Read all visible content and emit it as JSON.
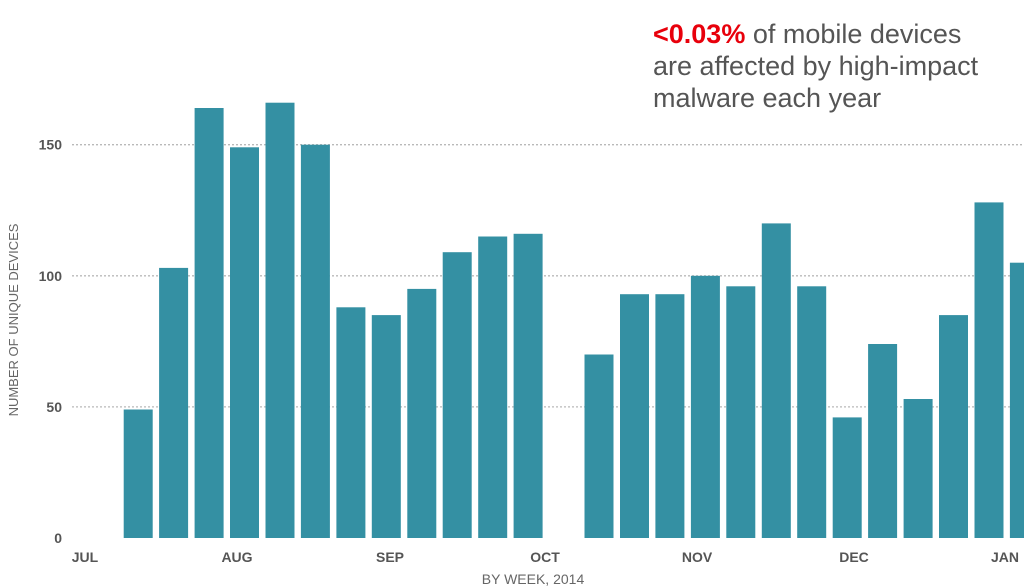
{
  "callout": {
    "highlight": "<0.03%",
    "line1_rest": " of mobile devices",
    "line2": "are affected by high-impact",
    "line3": "malware each year"
  },
  "colors": {
    "bar": "#3490a3",
    "grid": "#b9b9b9",
    "highlight": "#e8000b",
    "text": "#555555"
  },
  "chart_data": {
    "type": "bar",
    "xlabel": "BY WEEK, 2014",
    "ylabel": "NUMBER OF UNIQUE DEVICES",
    "ylim": [
      0,
      175
    ],
    "yticks": [
      0,
      50,
      100,
      150
    ],
    "grid": true,
    "month_labels": [
      "JUL",
      "AUG",
      "SEP",
      "OCT",
      "NOV",
      "DEC",
      "JAN"
    ],
    "values": [
      null,
      49,
      103,
      164,
      149,
      166,
      150,
      88,
      85,
      95,
      109,
      115,
      116,
      null,
      70,
      93,
      93,
      100,
      96,
      120,
      96,
      46,
      74,
      53,
      85,
      128,
      105
    ]
  }
}
